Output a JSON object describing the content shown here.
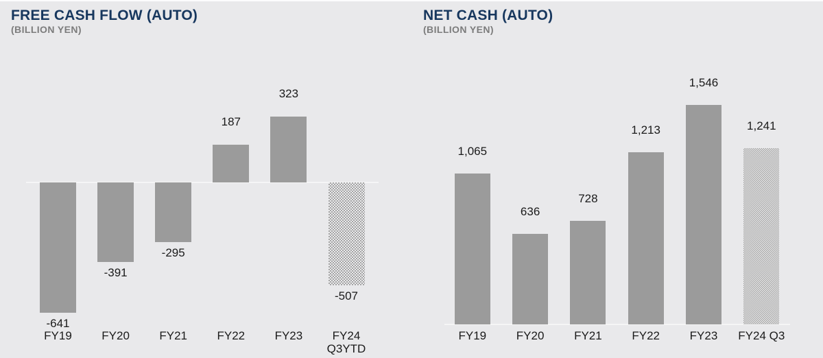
{
  "page": {
    "background_color": "#e9e9eb",
    "title_color": "#17375e",
    "subtitle_color": "#7c7c7c",
    "bar_color": "#9b9b9b",
    "label_color": "#1a1a1a"
  },
  "chart_data": [
    {
      "type": "bar",
      "title": "FREE CASH FLOW (AUTO)",
      "subtitle": "(BILLION YEN)",
      "categories": [
        "FY19",
        "FY20",
        "FY21",
        "FY22",
        "FY23",
        "FY24\nQ3YTD"
      ],
      "values": [
        -641,
        -391,
        -295,
        187,
        323,
        -507
      ],
      "labels": [
        "-641",
        "-391",
        "-295",
        "187",
        "323",
        "-507"
      ],
      "hatched": [
        false,
        false,
        false,
        false,
        false,
        true
      ],
      "bar_color": "#9b9b9b",
      "ylim": [
        -700,
        400
      ],
      "grid": false,
      "legend": false,
      "xlabel": "",
      "ylabel": "BILLION YEN"
    },
    {
      "type": "bar",
      "title": "NET CASH (AUTO)",
      "subtitle": "(BILLION YEN)",
      "categories": [
        "FY19",
        "FY20",
        "FY21",
        "FY22",
        "FY23",
        "FY24 Q3"
      ],
      "values": [
        1065,
        636,
        728,
        1213,
        1546,
        1241
      ],
      "labels": [
        "1,065",
        "636",
        "728",
        "1,213",
        "1,546",
        "1,241"
      ],
      "hatched": [
        false,
        false,
        false,
        false,
        false,
        true
      ],
      "bar_color": "#9b9b9b",
      "ylim": [
        0,
        1700
      ],
      "grid": false,
      "legend": false,
      "xlabel": "",
      "ylabel": "BILLION YEN"
    }
  ]
}
